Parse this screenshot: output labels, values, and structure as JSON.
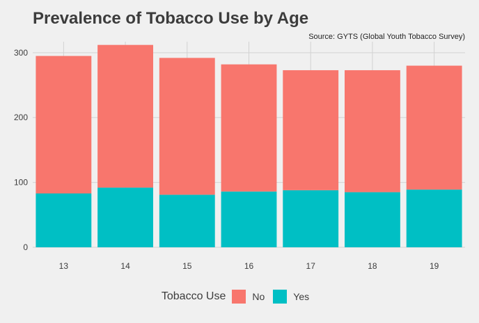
{
  "chart_data": {
    "type": "bar",
    "stacked": true,
    "title": "Prevalence of Tobacco Use by Age",
    "caption": "Source: GYTS (Global Youth Tobacco Survey)",
    "xlabel": "",
    "ylabel": "",
    "categories": [
      "13",
      "14",
      "15",
      "16",
      "17",
      "18",
      "19"
    ],
    "series": [
      {
        "name": "Yes",
        "color": "#00bfc4",
        "values": [
          83,
          92,
          81,
          86,
          88,
          85,
          89
        ]
      },
      {
        "name": "No",
        "color": "#f8766d",
        "values": [
          212,
          220,
          211,
          196,
          185,
          188,
          191
        ]
      }
    ],
    "ylim": [
      0,
      317
    ],
    "yticks": [
      "0",
      "100",
      "200",
      "300"
    ],
    "grid": true,
    "legend": {
      "title": "Tobacco Use",
      "position": "bottom",
      "items": [
        {
          "name": "No",
          "color": "#f8766d"
        },
        {
          "name": "Yes",
          "color": "#00bfc4"
        }
      ]
    }
  }
}
